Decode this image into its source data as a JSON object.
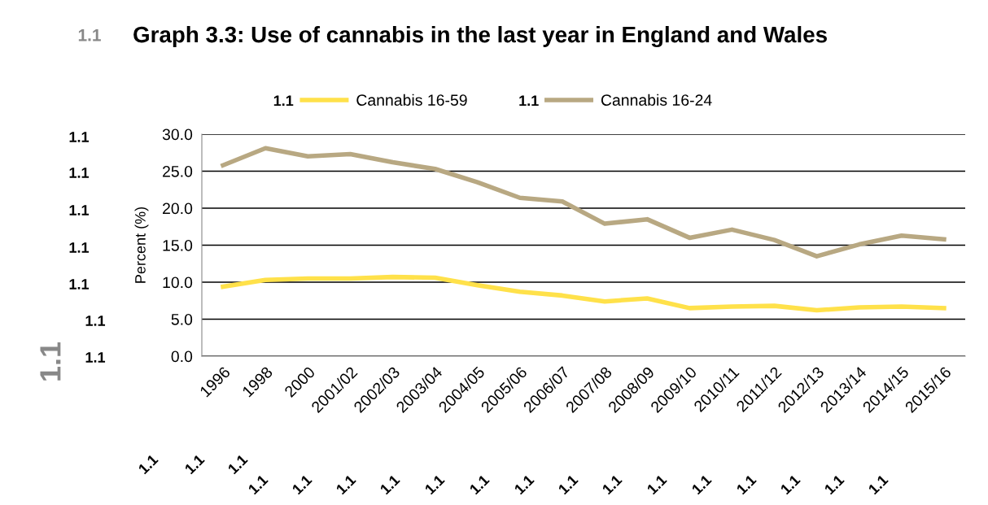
{
  "chart_data": {
    "type": "line",
    "title": "Graph 3.3: Use of cannabis in the last year in England and Wales",
    "ylabel": "Percent (%)",
    "categories": [
      "1996",
      "1998",
      "2000",
      "2001/02",
      "2002/03",
      "2003/04",
      "2004/05",
      "2005/06",
      "2006/07",
      "2007/08",
      "2008/09",
      "2009/10",
      "2010/11",
      "2011/12",
      "2012/13",
      "2013/14",
      "2014/15",
      "2015/16"
    ],
    "series": [
      {
        "name": "Cannabis 16-59",
        "color": "#ffe14a",
        "values": [
          9.4,
          10.3,
          10.5,
          10.5,
          10.7,
          10.6,
          9.6,
          8.7,
          8.2,
          7.4,
          7.8,
          6.5,
          6.7,
          6.8,
          6.2,
          6.6,
          6.7,
          6.5
        ]
      },
      {
        "name": "Cannabis 16-24",
        "color": "#b8a882",
        "values": [
          25.8,
          28.1,
          27.0,
          27.3,
          26.2,
          25.3,
          23.5,
          21.4,
          20.9,
          17.9,
          18.5,
          16.0,
          17.1,
          15.7,
          13.5,
          15.1,
          16.3,
          15.8
        ]
      }
    ],
    "ylim": [
      0,
      30
    ],
    "yticks": [
      {
        "value": 0,
        "label": "0.0"
      },
      {
        "value": 5,
        "label": "5.0"
      },
      {
        "value": 10,
        "label": "10.0"
      },
      {
        "value": 15,
        "label": "15.0"
      },
      {
        "value": 20,
        "label": "20.0"
      },
      {
        "value": 25,
        "label": "25.0"
      },
      {
        "value": 30,
        "label": "30.0"
      }
    ],
    "grid": "y",
    "legend": "top",
    "marker": "none",
    "line_style": "solid",
    "annotations": [
      "1.1",
      "1.1",
      "1.1",
      "1.1",
      "1.1",
      "1.1",
      "1.1",
      "1.1",
      "1.1",
      "1.1",
      "1.1",
      "1.1",
      "1.1",
      "1.1",
      "1.1",
      "1.1",
      "1.1",
      "1.1",
      "1.1",
      "1.1",
      "1.1",
      "1.1",
      "1.1",
      "1.1",
      "1.1",
      "1.1",
      "1.1",
      "1.1",
      "1.1"
    ]
  }
}
